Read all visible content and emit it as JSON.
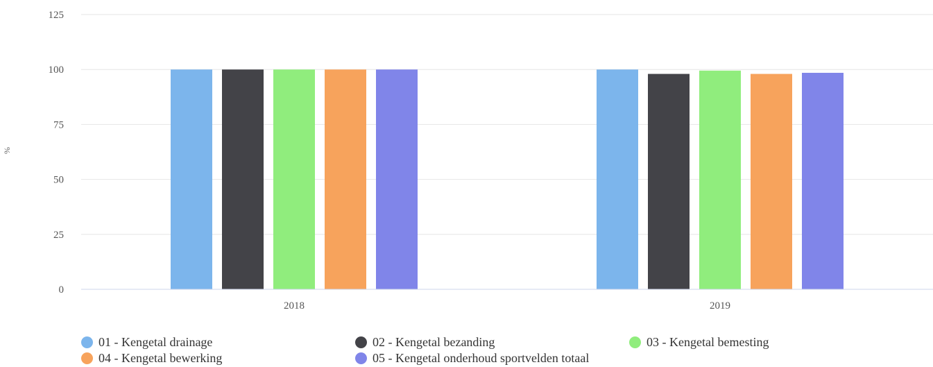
{
  "chart_data": {
    "type": "bar",
    "categories": [
      "2018",
      "2019"
    ],
    "ylabel": "%",
    "ylim": [
      0,
      125
    ],
    "yticks": [
      "0",
      "25",
      "50",
      "75",
      "100",
      "125"
    ],
    "grid": true,
    "legend_position": "bottom-left",
    "series": [
      {
        "name": "01 - Kengetal drainage",
        "color": "#7cb5ec",
        "values": [
          100,
          100
        ]
      },
      {
        "name": "02 - Kengetal bezanding",
        "color": "#434348",
        "values": [
          100,
          98
        ]
      },
      {
        "name": "03 - Kengetal bemesting",
        "color": "#90ed7d",
        "values": [
          100,
          99.5
        ]
      },
      {
        "name": "04 - Kengetal bewerking",
        "color": "#f7a35c",
        "values": [
          100,
          98
        ]
      },
      {
        "name": "05 - Kengetal onderhoud sportvelden totaal",
        "color": "#8085e9",
        "values": [
          100,
          98.5
        ]
      }
    ]
  }
}
